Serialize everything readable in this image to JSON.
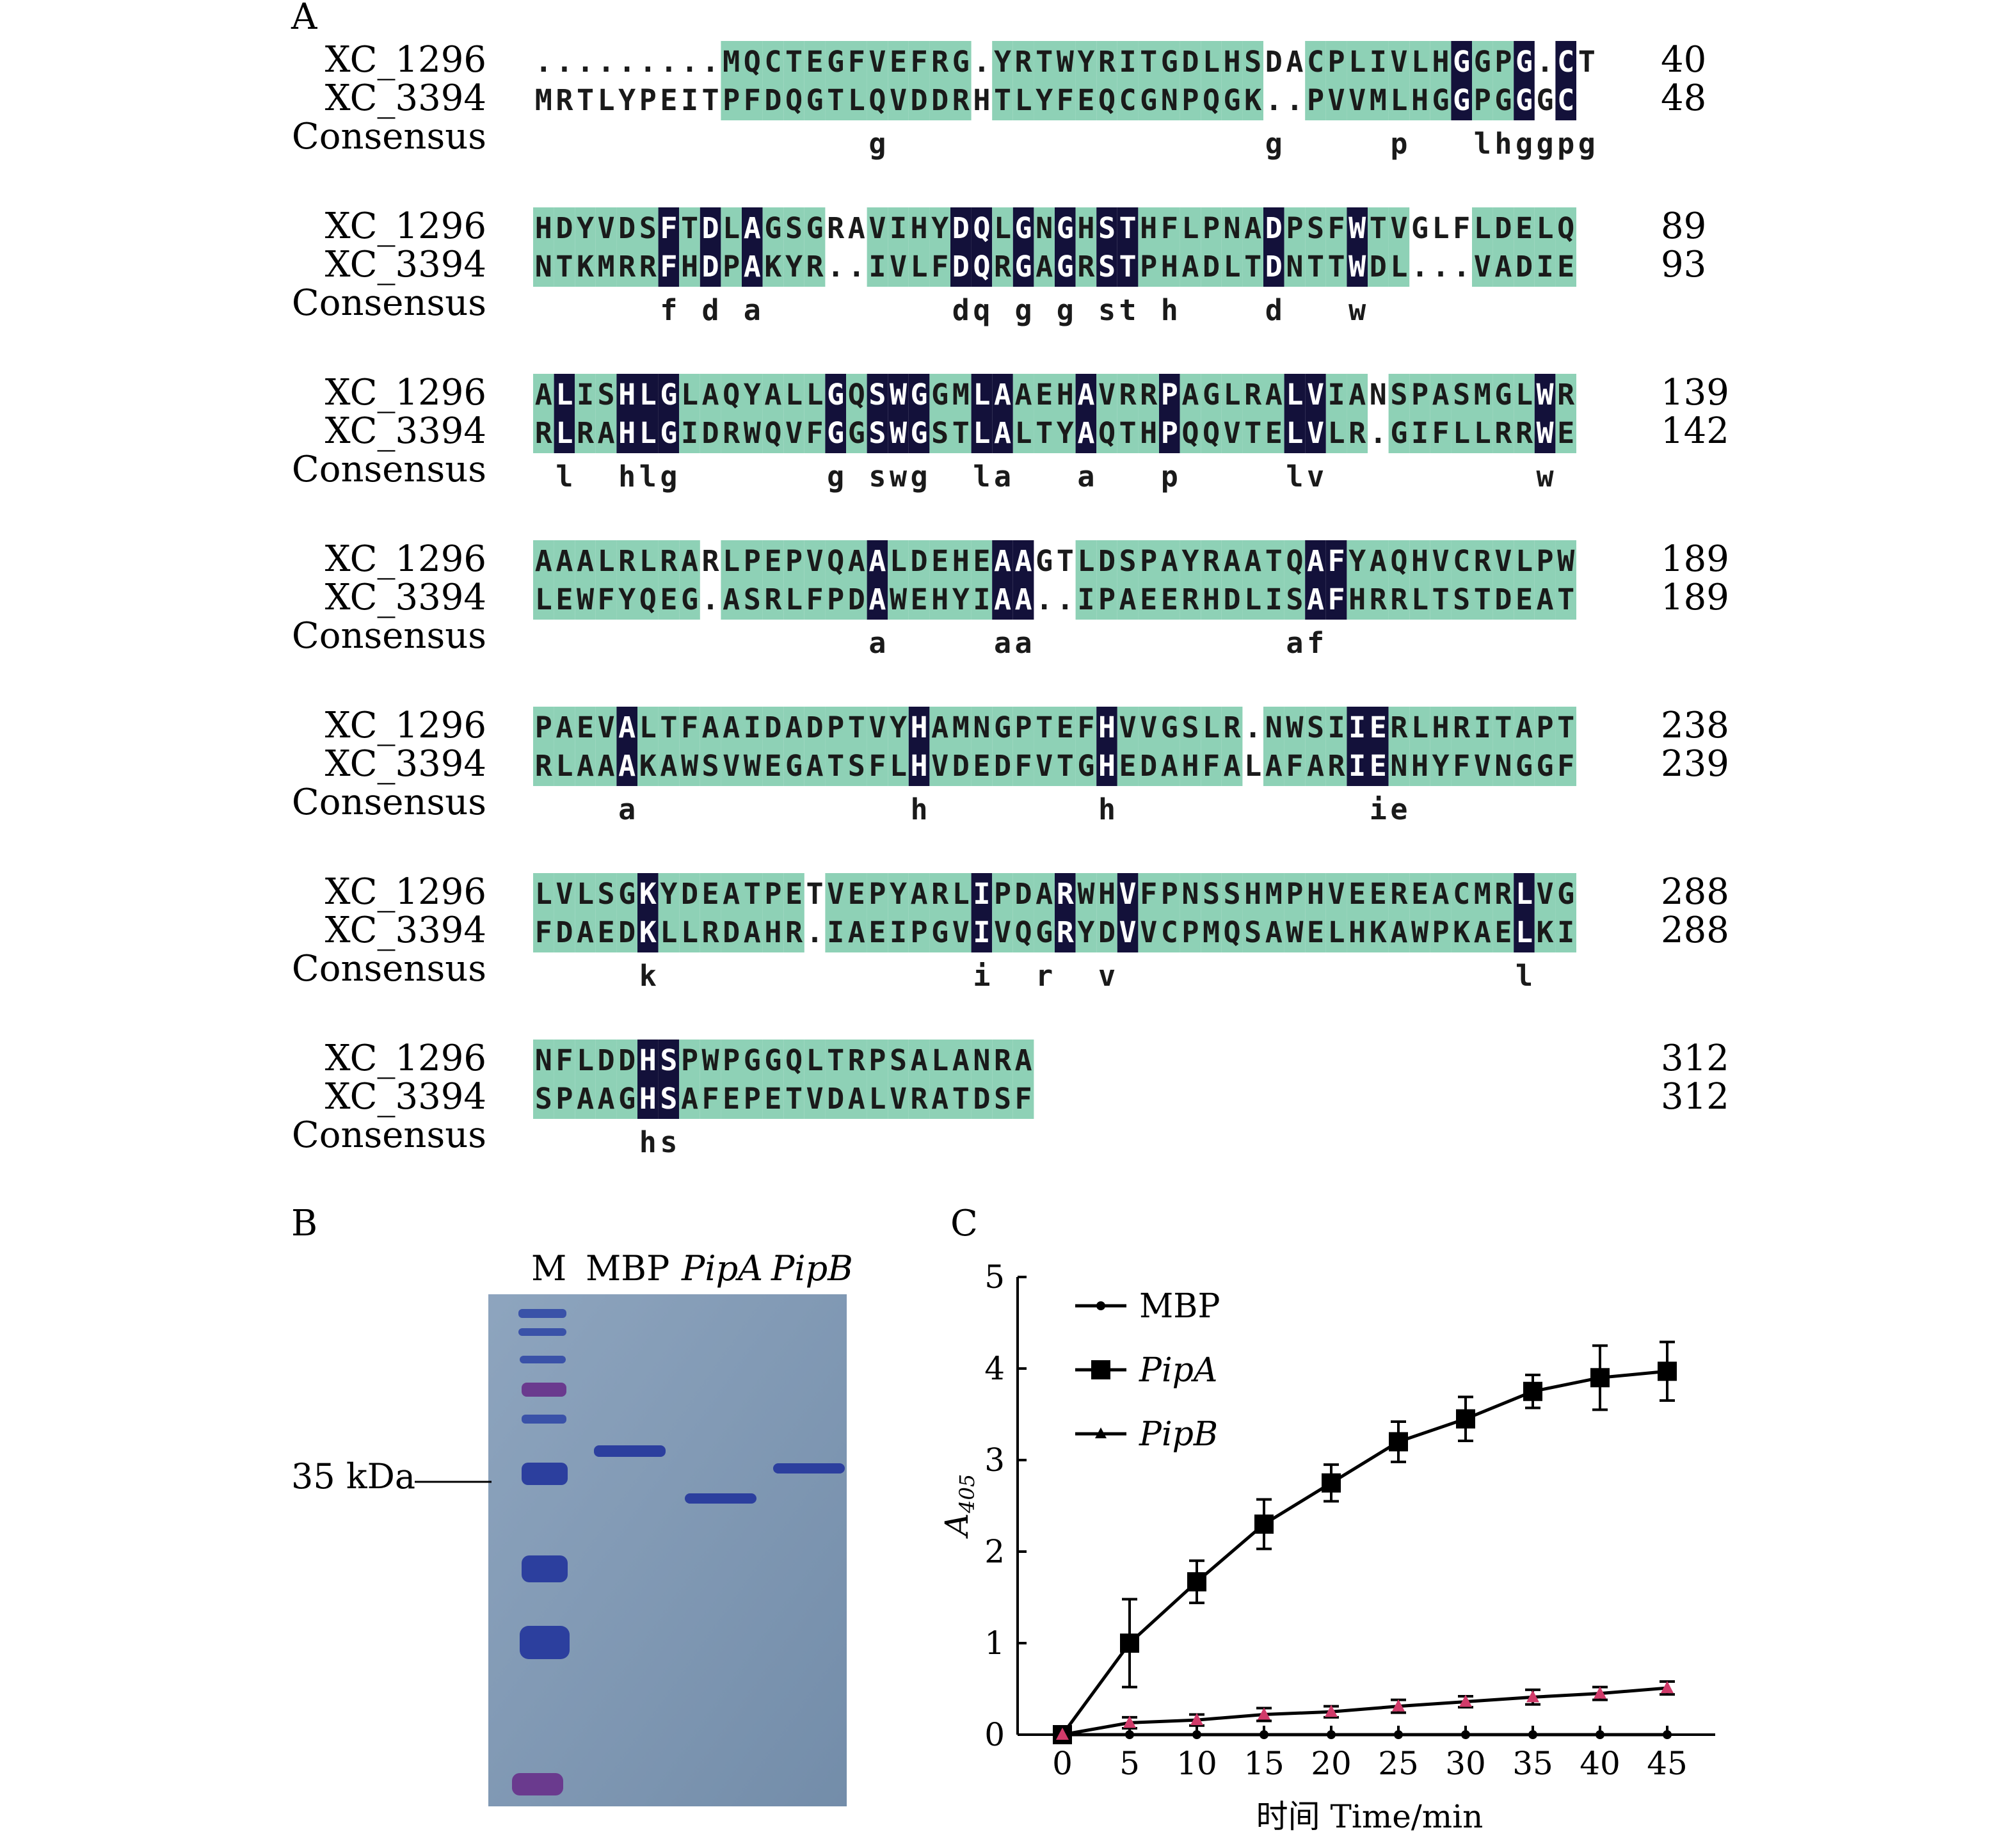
{
  "panel_a": {
    "label": "A",
    "consensus_label": "Consensus",
    "blocks": [
      {
        "rows": [
          {
            "name": "XC_1296",
            "seq": ".........MQCTEGFVEFRG.YRTWYRITGDLHSDACPLIVLHGGPG.CT",
            "end": "40"
          },
          {
            "name": "XC_3394",
            "seq": "MRTLYPEITPFDQGTLQVDDRHTLYFEQCGNPQGK..PVVMLHGGPGGGC",
            "end": "48"
          }
        ],
        "consensus": "                g                  g     p   lhggpg  "
      },
      {
        "rows": [
          {
            "name": "XC_1296",
            "seq": "HDYVDSFTDLAGSGRAVIHYDQLGNGHSTHFLPNADPSFWTVGLFLDELQ",
            "end": "89"
          },
          {
            "name": "XC_3394",
            "seq": "NTKMRRFHDPAKYR..IVLFDQRGAGRSTPHADLTDNTTWDL...VADIE",
            "end": "93"
          }
        ],
        "consensus": "      f d a         dq g g st h    d   w          "
      },
      {
        "rows": [
          {
            "name": "XC_1296",
            "seq": "ALISHLGLAQYALLGQSWGGMLAAEHAVRRPAGLRALVIANSPASMGLWR",
            "end": "139"
          },
          {
            "name": "XC_3394",
            "seq": "RLRAHLGIDRWQVFGGSWGSTLALTYAQTHPQQVTELVLR.GIFLLRRWE",
            "end": "142"
          }
        ],
        "consensus": " l  hlg       g swg  la   a   p     lv          w "
      },
      {
        "rows": [
          {
            "name": "XC_1296",
            "seq": "AAALRLRARLPEPVQAALDEHEAAGTLDSPAYRAATQAFYAQHVCRVLPW",
            "end": "189"
          },
          {
            "name": "XC_3394",
            "seq": "LEWFYQEG.ASRLFPDAWEHYIAA..IPAEERHDLISAFHRRLTSTDEAT",
            "end": "189"
          }
        ],
        "consensus": "                a     aa            af            "
      },
      {
        "rows": [
          {
            "name": "XC_1296",
            "seq": "PAEVALTFAAIDADPTVYHAMNGPTEFHVVGSLR.NWSIIERLHRITAPT",
            "end": "238"
          },
          {
            "name": "XC_3394",
            "seq": "RLAAAKAWSVWEGATSFLHVDEDFVTGHEDAHFALAFARIENHYFVNGGF",
            "end": "239"
          }
        ],
        "consensus": "    a             h        h            ie        "
      },
      {
        "rows": [
          {
            "name": "XC_1296",
            "seq": "LVLSGKYDEATPETVEPYARLIPDARWHVFPNSSHMPHVEEREACMRLVG",
            "end": "288"
          },
          {
            "name": "XC_3394",
            "seq": "FDAEDKLLRDAHR.IAEIPGVIVQGRYDVVCPMQSAWELHKAWPKAELKI",
            "end": "288"
          }
        ],
        "consensus": "     k               i  r  v                   l  "
      },
      {
        "rows": [
          {
            "name": "XC_1296",
            "seq": "NFLDDHSPWPGGQLTRPSALANRA",
            "end": "312"
          },
          {
            "name": "XC_3394",
            "seq": "SPAAGHSAFEPETVDALVRATDSF",
            "end": "312"
          }
        ],
        "consensus": "     hs                   "
      }
    ]
  },
  "panel_b": {
    "label": "B",
    "lanes": [
      "M",
      "MBP",
      "PipA",
      "PipB"
    ],
    "marker_label": "35 kDa",
    "colors": {
      "gel": "#7f98b4",
      "band": "#2c3f9e",
      "marker": "#3a52a8"
    }
  },
  "chart_data": {
    "type": "line",
    "panel_label": "C",
    "xlabel": "时间 Time/min",
    "ylabel": "A",
    "ylabel_sub": "405",
    "xlim": [
      0,
      45
    ],
    "ylim": [
      0,
      5
    ],
    "x": [
      0,
      5,
      10,
      15,
      20,
      25,
      30,
      35,
      40,
      45
    ],
    "xticks": [
      "0",
      "5",
      "10",
      "15",
      "20",
      "25",
      "30",
      "35",
      "40",
      "45"
    ],
    "yticks": [
      "0",
      "1",
      "2",
      "3",
      "4",
      "5"
    ],
    "legend_placement": "top-left",
    "series": [
      {
        "name": "MBP",
        "marker": "small-dot",
        "values": [
          0,
          0,
          0,
          0,
          0,
          0,
          0,
          0,
          0,
          0
        ],
        "errors": [
          0,
          0,
          0,
          0,
          0,
          0,
          0,
          0,
          0,
          0
        ]
      },
      {
        "name": "PipA",
        "marker": "square",
        "values": [
          0,
          1.0,
          1.67,
          2.3,
          2.75,
          3.2,
          3.45,
          3.75,
          3.9,
          3.97
        ],
        "errors": [
          0.03,
          0.48,
          0.23,
          0.27,
          0.2,
          0.22,
          0.24,
          0.18,
          0.35,
          0.32
        ]
      },
      {
        "name": "PipB",
        "marker": "triangle",
        "color": "#d13b6a",
        "values": [
          0,
          0.13,
          0.16,
          0.22,
          0.25,
          0.31,
          0.36,
          0.41,
          0.45,
          0.51
        ],
        "errors": [
          0.02,
          0.06,
          0.06,
          0.07,
          0.06,
          0.07,
          0.06,
          0.08,
          0.07,
          0.07
        ]
      }
    ]
  },
  "colors": {
    "identical": "#13113a",
    "similar": "#8ed1b6",
    "text": "#1a1a1a"
  }
}
